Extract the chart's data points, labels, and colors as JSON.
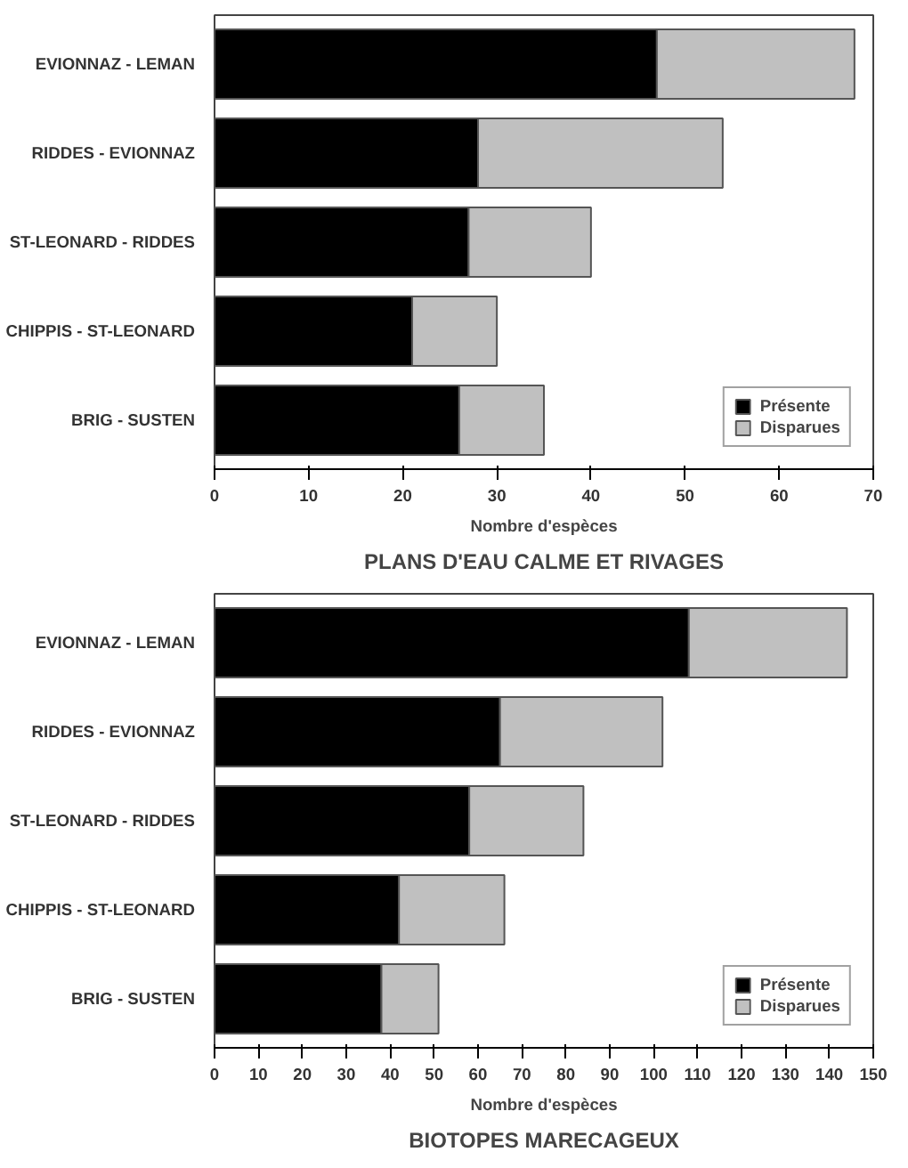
{
  "chart_data": [
    {
      "type": "bar",
      "orientation": "horizontal",
      "stacked": true,
      "title": "PLANS D'EAU CALME ET RIVAGES",
      "xlabel": "Nombre d'espèces",
      "categories": [
        "EVIONNAZ - LEMAN",
        "RIDDES - EVIONNAZ",
        "ST-LEONARD - RIDDES",
        "CHIPPIS - ST-LEONARD",
        "BRIG - SUSTEN"
      ],
      "series": [
        {
          "name": "Présente",
          "color": "#000000",
          "values": [
            47,
            28,
            27,
            21,
            26
          ]
        },
        {
          "name": "Disparues",
          "color": "#c0c0c0",
          "values": [
            21,
            26,
            13,
            9,
            9
          ]
        }
      ],
      "xlim": [
        0,
        70
      ],
      "xticks": [
        0,
        10,
        20,
        30,
        40,
        50,
        60,
        70
      ],
      "legend": "bottom right",
      "grid": false
    },
    {
      "type": "bar",
      "orientation": "horizontal",
      "stacked": true,
      "title": "BIOTOPES MARECAGEUX",
      "xlabel": "Nombre d'espèces",
      "categories": [
        "EVIONNAZ - LEMAN",
        "RIDDES - EVIONNAZ",
        "ST-LEONARD - RIDDES",
        "CHIPPIS - ST-LEONARD",
        "BRIG - SUSTEN"
      ],
      "series": [
        {
          "name": "Présente",
          "color": "#000000",
          "values": [
            108,
            65,
            58,
            42,
            38
          ]
        },
        {
          "name": "Disparues",
          "color": "#c0c0c0",
          "values": [
            36,
            37,
            26,
            24,
            13
          ]
        }
      ],
      "xlim": [
        0,
        150
      ],
      "xticks": [
        0,
        10,
        20,
        30,
        40,
        50,
        60,
        70,
        80,
        90,
        100,
        110,
        120,
        130,
        140,
        150
      ],
      "legend": "bottom right",
      "grid": false
    }
  ]
}
